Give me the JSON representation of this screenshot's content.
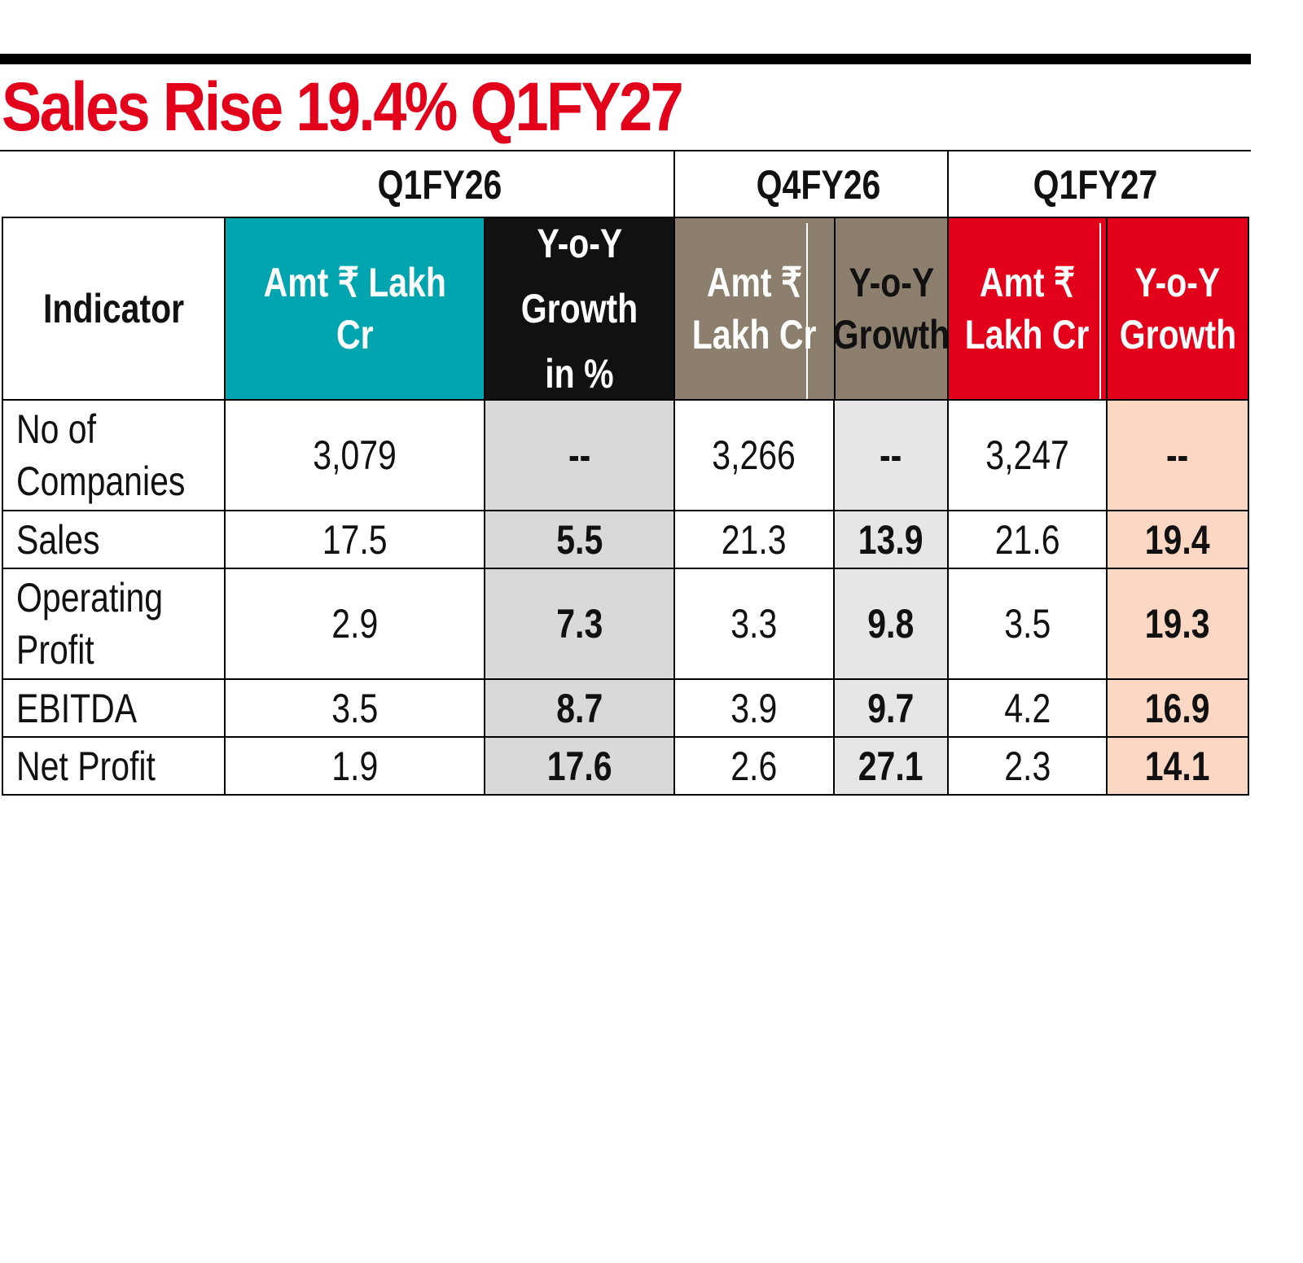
{
  "title": "Sales Rise 19.4% Q1FY27",
  "periods": [
    "Q1FY26",
    "Q4FY26",
    "Q1FY27"
  ],
  "headers": {
    "indicator": "Indicator",
    "q1fy26_amt": [
      "Amt ₹ Lakh",
      "Cr"
    ],
    "q1fy26_yoy": [
      "Y-o-Y",
      "Growth",
      "in %"
    ],
    "q4fy26_amt": [
      "Amt ₹",
      "Lakh Cr"
    ],
    "q4fy26_yoy": [
      "Y-o-Y",
      "Growth"
    ],
    "q1fy27_amt": [
      "Amt ₹",
      "Lakh Cr"
    ],
    "q1fy27_yoy": [
      "Y-o-Y",
      "Growth"
    ]
  },
  "colors": {
    "title": "#e2001a",
    "q1fy26_amt_bg": "#00a5b0",
    "q1fy26_yoy_bg": "#111111",
    "q4fy26_bg": "#8c7f6d",
    "q1fy27_bg": "#e2001a",
    "yoy_q1fy26_cells": "#d9d9d9",
    "yoy_q4fy26_cells": "#e6e6e6",
    "yoy_q1fy27_cells": "#fbd7c4"
  },
  "chart_data": {
    "type": "table",
    "title": "Sales Rise 19.4% Q1FY27",
    "columns": [
      "Indicator",
      "Q1FY26 Amt ₹ Lakh Cr",
      "Q1FY26 Y-o-Y Growth in %",
      "Q4FY26 Amt ₹ Lakh Cr",
      "Q4FY26 Y-o-Y Growth",
      "Q1FY27 Amt ₹ Lakh Cr",
      "Q1FY27 Y-o-Y Growth"
    ],
    "rows": [
      {
        "indicator": [
          "No of",
          "Companies"
        ],
        "values": [
          "3,079",
          "--",
          "3,266",
          "--",
          "3,247",
          "--"
        ]
      },
      {
        "indicator": [
          "Sales"
        ],
        "values": [
          "17.5",
          "5.5",
          "21.3",
          "13.9",
          "21.6",
          "19.4"
        ]
      },
      {
        "indicator": [
          "Operating",
          "Profit"
        ],
        "values": [
          "2.9",
          "7.3",
          "3.3",
          "9.8",
          "3.5",
          "19.3"
        ]
      },
      {
        "indicator": [
          "EBITDA"
        ],
        "values": [
          "3.5",
          "8.7",
          "3.9",
          "9.7",
          "4.2",
          "16.9"
        ]
      },
      {
        "indicator": [
          "Net Profit"
        ],
        "values": [
          "1.9",
          "17.6",
          "2.6",
          "27.1",
          "2.3",
          "14.1"
        ]
      }
    ]
  }
}
